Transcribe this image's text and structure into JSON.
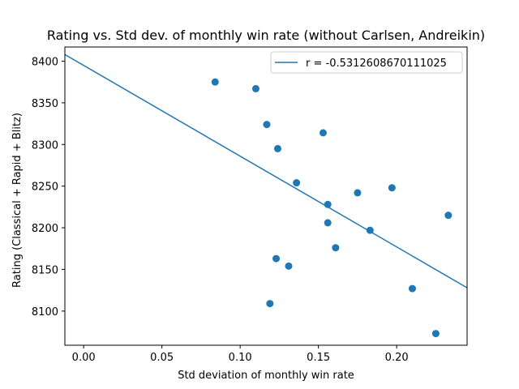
{
  "chart_data": {
    "type": "scatter",
    "title": "Rating vs. Std dev. of monthly win rate (without Carlsen, Andreikin)",
    "xlabel": "Std deviation of monthly win rate",
    "ylabel": "Rating (Classical + Rapid + Blitz)",
    "xlim": [
      -0.012,
      0.245
    ],
    "ylim": [
      8059,
      8417
    ],
    "xticks": [
      0.0,
      0.05,
      0.1,
      0.15,
      0.2
    ],
    "xtick_labels": [
      "0.00",
      "0.05",
      "0.10",
      "0.15",
      "0.20"
    ],
    "yticks": [
      8100,
      8150,
      8200,
      8250,
      8300,
      8350,
      8400
    ],
    "ytick_labels": [
      "8100",
      "8150",
      "8200",
      "8250",
      "8300",
      "8350",
      "8400"
    ],
    "grid": false,
    "legend_position": "top-right",
    "colors": {
      "series": "#1f77b4",
      "axes": "#000000",
      "legend_border": "#cccccc"
    },
    "series": [
      {
        "type": "scatter",
        "points": [
          {
            "x": 0.084,
            "y": 8375
          },
          {
            "x": 0.11,
            "y": 8367
          },
          {
            "x": 0.117,
            "y": 8324
          },
          {
            "x": 0.153,
            "y": 8314
          },
          {
            "x": 0.124,
            "y": 8295
          },
          {
            "x": 0.136,
            "y": 8254
          },
          {
            "x": 0.175,
            "y": 8242
          },
          {
            "x": 0.197,
            "y": 8248
          },
          {
            "x": 0.156,
            "y": 8228
          },
          {
            "x": 0.156,
            "y": 8206
          },
          {
            "x": 0.233,
            "y": 8215
          },
          {
            "x": 0.183,
            "y": 8197
          },
          {
            "x": 0.161,
            "y": 8176
          },
          {
            "x": 0.123,
            "y": 8163
          },
          {
            "x": 0.131,
            "y": 8154
          },
          {
            "x": 0.21,
            "y": 8127
          },
          {
            "x": 0.119,
            "y": 8109
          },
          {
            "x": 0.225,
            "y": 8073
          }
        ]
      },
      {
        "type": "line",
        "name": "r = -0.5312608670111025",
        "points": [
          {
            "x": -0.012,
            "y": 8408
          },
          {
            "x": 0.245,
            "y": 8128
          }
        ]
      }
    ]
  }
}
